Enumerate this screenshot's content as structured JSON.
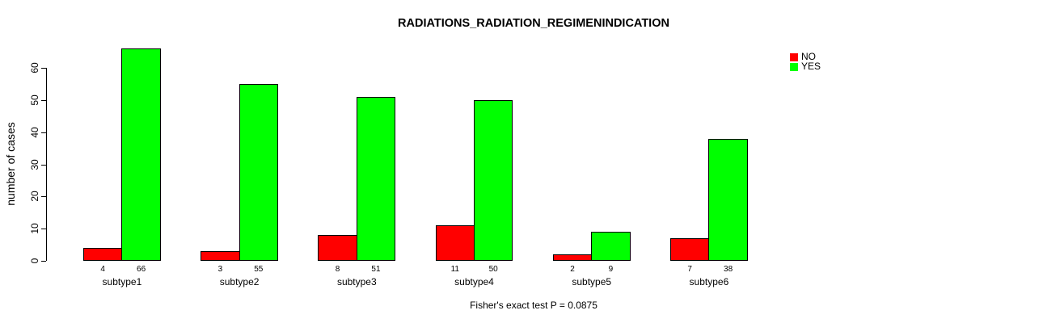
{
  "chart_data": {
    "type": "bar",
    "title": "RADIATIONS_RADIATION_REGIMENINDICATION",
    "ylabel": "number of cases",
    "xlabel": "",
    "annotation": "Fisher's exact test P = 0.0875",
    "categories": [
      "subtype1",
      "subtype2",
      "subtype3",
      "subtype4",
      "subtype5",
      "subtype6"
    ],
    "series": [
      {
        "name": "NO",
        "color": "#FF0000",
        "values": [
          4,
          3,
          8,
          11,
          2,
          7
        ]
      },
      {
        "name": "YES",
        "color": "#00FF00",
        "values": [
          66,
          55,
          51,
          50,
          9,
          38
        ]
      }
    ],
    "yticks": [
      0,
      10,
      20,
      30,
      40,
      50,
      60
    ],
    "ylim": [
      0,
      66
    ],
    "grid": false,
    "legend_position": "top-right",
    "bar_value_labels": true,
    "bar_border_color": "#000000",
    "background_color": "#FFFFFF"
  }
}
